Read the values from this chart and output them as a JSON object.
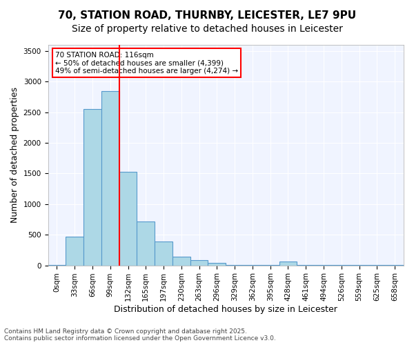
{
  "title_line1": "70, STATION ROAD, THURNBY, LEICESTER, LE7 9PU",
  "title_line2": "Size of property relative to detached houses in Leicester",
  "xlabel": "Distribution of detached houses by size in Leicester",
  "ylabel": "Number of detached properties",
  "bar_values": [
    5,
    470,
    2550,
    2850,
    1530,
    720,
    385,
    145,
    90,
    45,
    5,
    5,
    5,
    65,
    5,
    5,
    5,
    5,
    5,
    5
  ],
  "bin_labels": [
    "0sqm",
    "33sqm",
    "66sqm",
    "99sqm",
    "132sqm",
    "165sqm",
    "197sqm",
    "230sqm",
    "263sqm",
    "296sqm",
    "329sqm",
    "362sqm",
    "395sqm",
    "428sqm",
    "461sqm",
    "494sqm",
    "526sqm",
    "559sqm",
    "625sqm",
    "658sqm"
  ],
  "bar_color": "#add8e6",
  "bar_edge_color": "#5599cc",
  "vline_x": 3,
  "vline_color": "red",
  "annotation_text": "70 STATION ROAD: 116sqm\n← 50% of detached houses are smaller (4,399)\n49% of semi-detached houses are larger (4,274) →",
  "annotation_box_color": "red",
  "ylim": [
    0,
    3600
  ],
  "yticks": [
    0,
    500,
    1000,
    1500,
    2000,
    2500,
    3000,
    3500
  ],
  "bg_color": "#f0f4ff",
  "footer_text": "Contains HM Land Registry data © Crown copyright and database right 2025.\nContains public sector information licensed under the Open Government Licence v3.0.",
  "title_fontsize": 11,
  "subtitle_fontsize": 10,
  "xlabel_fontsize": 9,
  "ylabel_fontsize": 9,
  "tick_fontsize": 7.5
}
